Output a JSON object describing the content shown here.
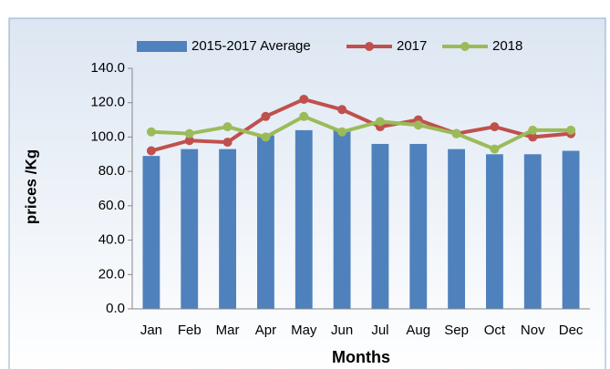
{
  "chart_data": {
    "type": "bar_line",
    "y_label": "prices /Kg",
    "x_label": "Months",
    "categories": [
      "Jan",
      "Feb",
      "Mar",
      "Apr",
      "May",
      "Jun",
      "Jul",
      "Aug",
      "Sep",
      "Oct",
      "Nov",
      "Dec"
    ],
    "series": [
      {
        "name": "2015-2017 Average",
        "type": "bar",
        "color": "#4f81bd",
        "values": [
          89,
          93,
          93,
          101,
          104,
          104,
          96,
          96,
          93,
          90,
          90,
          92
        ]
      },
      {
        "name": "2017",
        "type": "line",
        "color": "#c0504d",
        "values": [
          92,
          98,
          97,
          112,
          122,
          116,
          106,
          110,
          102,
          106,
          100,
          102
        ]
      },
      {
        "name": "2018",
        "type": "line",
        "color": "#9bbb59",
        "values": [
          103,
          102,
          106,
          100,
          112,
          103,
          109,
          107,
          102,
          93,
          104,
          104
        ]
      }
    ],
    "ylim": [
      0,
      140
    ],
    "yticks": [
      {
        "value": 0,
        "label": "0.0"
      },
      {
        "value": 20,
        "label": "20.0"
      },
      {
        "value": 40,
        "label": "40.0"
      },
      {
        "value": 60,
        "label": "60.0"
      },
      {
        "value": 80,
        "label": "80.0"
      },
      {
        "value": 100,
        "label": "100.0"
      },
      {
        "value": 120,
        "label": "120.0"
      },
      {
        "value": 140,
        "label": "140.0"
      }
    ],
    "grid": false,
    "legend": "top"
  }
}
